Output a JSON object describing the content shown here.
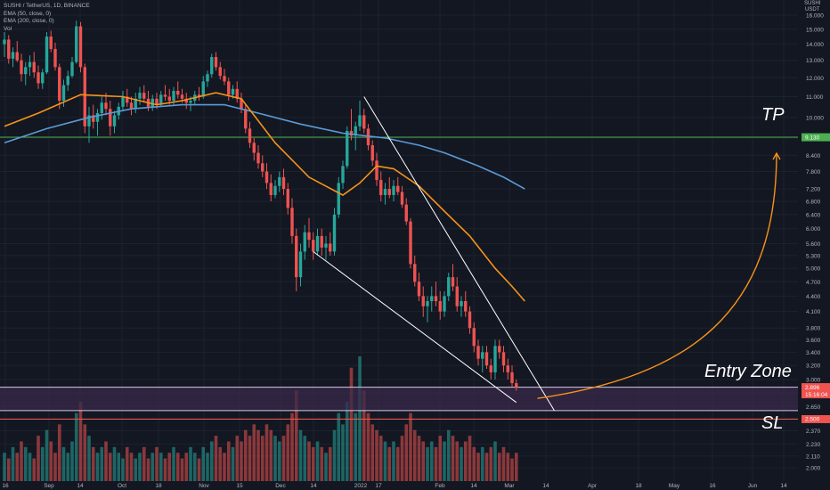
{
  "legend": {
    "symbol_line": "SUSHI / TetherUS, 1D, BINANCE",
    "ema50_line": "EMA (50, close, 0)",
    "ema200_line": "EMA (200, close, 0)",
    "vol_line": "Vol"
  },
  "axis_currency": {
    "line1": "SUSHI",
    "line2": "USDT"
  },
  "annotations": {
    "tp": "TP",
    "entry": "Entry Zone",
    "sl": "SL"
  },
  "colors": {
    "background": "#131722",
    "up": "#26a69a",
    "down": "#ef5350",
    "ema50": "#f7931a",
    "ema200": "#5b9bd5",
    "tp_line": "#4caf50",
    "entry_zone_fill": "#3a2a4a",
    "sl_line": "#ef5350",
    "trendline": "#ffffff",
    "projection": "#f7931a"
  },
  "chart_data": {
    "type": "candlestick",
    "price_axis": {
      "scale": "log",
      "ticks": [
        "2.000",
        "2.110",
        "2.230",
        "2.370",
        "2.510",
        "2.650",
        "2.820",
        "3.000",
        "3.200",
        "3.400",
        "3.600",
        "3.800",
        "4.100",
        "4.400",
        "4.700",
        "5.000",
        "5.300",
        "5.600",
        "6.000",
        "6.400",
        "6.800",
        "7.200",
        "7.800",
        "8.400",
        "9.100",
        "10.000",
        "11.000",
        "12.000",
        "13.000",
        "14.000",
        "15.000",
        "16.000"
      ]
    },
    "time_axis": {
      "ticks": [
        "16",
        "Sep",
        "14",
        "Oct",
        "18",
        "Nov",
        "15",
        "Dec",
        "14",
        "2022",
        "17",
        "Feb",
        "14",
        "Mar",
        "14",
        "Apr",
        "18",
        "May",
        "16",
        "Jun",
        "14"
      ]
    },
    "levels": {
      "take_profit": {
        "label": "9.130",
        "value": 9.13
      },
      "entry_zone": {
        "upper": 2.896,
        "lower": 2.6
      },
      "current": {
        "label": "2.896",
        "sublabel": "15:16:04",
        "value": 2.896
      },
      "stop_loss": {
        "label": "2.500",
        "value": 2.5
      }
    },
    "candles": [
      [
        14.0,
        14.8,
        13.2,
        14.3
      ],
      [
        14.3,
        14.6,
        12.8,
        13.1
      ],
      [
        13.1,
        13.8,
        12.6,
        13.5
      ],
      [
        13.5,
        14.2,
        12.9,
        13.0
      ],
      [
        13.0,
        13.4,
        11.8,
        12.2
      ],
      [
        12.2,
        12.9,
        11.6,
        12.6
      ],
      [
        12.6,
        13.3,
        12.1,
        12.9
      ],
      [
        12.9,
        13.5,
        12.0,
        12.3
      ],
      [
        12.3,
        12.7,
        11.4,
        11.7
      ],
      [
        11.7,
        12.5,
        11.4,
        12.3
      ],
      [
        12.3,
        14.8,
        12.2,
        14.5
      ],
      [
        14.5,
        14.9,
        13.5,
        13.7
      ],
      [
        13.7,
        14.1,
        12.4,
        12.6
      ],
      [
        12.6,
        12.8,
        10.4,
        10.8
      ],
      [
        10.8,
        11.9,
        10.5,
        11.6
      ],
      [
        11.6,
        12.4,
        11.3,
        12.1
      ],
      [
        12.1,
        13.2,
        12.0,
        12.9
      ],
      [
        12.9,
        15.6,
        12.8,
        15.2
      ],
      [
        15.2,
        15.5,
        12.3,
        12.6
      ],
      [
        12.6,
        12.8,
        9.3,
        9.6
      ],
      [
        9.6,
        10.5,
        8.9,
        10.1
      ],
      [
        10.1,
        10.6,
        9.5,
        9.8
      ],
      [
        9.8,
        10.4,
        9.2,
        10.2
      ],
      [
        10.2,
        11.0,
        9.9,
        10.7
      ],
      [
        10.7,
        11.2,
        10.1,
        10.4
      ],
      [
        10.4,
        10.8,
        9.2,
        9.6
      ],
      [
        9.6,
        10.3,
        9.3,
        10.1
      ],
      [
        10.1,
        10.7,
        9.9,
        10.5
      ],
      [
        10.5,
        11.3,
        10.3,
        11.0
      ],
      [
        11.0,
        11.4,
        10.5,
        10.7
      ],
      [
        10.7,
        11.0,
        10.1,
        10.4
      ],
      [
        10.4,
        11.2,
        10.2,
        10.9
      ],
      [
        10.9,
        11.5,
        10.6,
        11.2
      ],
      [
        11.2,
        11.6,
        10.7,
        10.9
      ],
      [
        10.9,
        11.3,
        10.3,
        10.5
      ],
      [
        10.5,
        11.1,
        10.3,
        10.9
      ],
      [
        10.9,
        11.2,
        10.4,
        10.6
      ],
      [
        10.6,
        11.3,
        10.5,
        11.1
      ],
      [
        11.1,
        11.6,
        10.8,
        11.0
      ],
      [
        11.0,
        11.4,
        10.6,
        10.8
      ],
      [
        10.8,
        11.5,
        10.6,
        11.3
      ],
      [
        11.3,
        11.8,
        10.9,
        11.1
      ],
      [
        11.1,
        11.4,
        10.7,
        10.9
      ],
      [
        10.9,
        11.2,
        10.4,
        10.7
      ],
      [
        10.7,
        11.0,
        10.3,
        10.8
      ],
      [
        10.8,
        11.3,
        10.6,
        11.1
      ],
      [
        11.1,
        11.5,
        10.8,
        11.0
      ],
      [
        11.0,
        12.1,
        10.9,
        11.8
      ],
      [
        11.8,
        12.4,
        11.5,
        12.2
      ],
      [
        12.2,
        13.4,
        12.0,
        13.2
      ],
      [
        13.2,
        13.5,
        12.4,
        12.6
      ],
      [
        12.6,
        12.9,
        11.9,
        12.1
      ],
      [
        12.1,
        12.5,
        11.6,
        11.8
      ],
      [
        11.8,
        12.0,
        10.8,
        11.1
      ],
      [
        11.1,
        11.6,
        10.9,
        11.4
      ],
      [
        11.4,
        11.8,
        10.7,
        10.9
      ],
      [
        10.9,
        11.2,
        10.2,
        10.4
      ],
      [
        10.4,
        10.6,
        9.3,
        9.5
      ],
      [
        9.5,
        9.8,
        8.7,
        8.9
      ],
      [
        8.9,
        9.1,
        8.2,
        8.5
      ],
      [
        8.5,
        8.8,
        7.9,
        8.1
      ],
      [
        8.1,
        8.4,
        7.6,
        7.8
      ],
      [
        7.8,
        8.1,
        7.2,
        7.4
      ],
      [
        7.4,
        7.7,
        6.8,
        7.0
      ],
      [
        7.0,
        7.5,
        6.9,
        7.3
      ],
      [
        7.3,
        7.8,
        7.1,
        7.6
      ],
      [
        7.6,
        7.9,
        7.0,
        7.2
      ],
      [
        7.2,
        7.4,
        6.4,
        6.6
      ],
      [
        6.6,
        6.9,
        5.6,
        5.8
      ],
      [
        5.8,
        6.0,
        4.5,
        4.8
      ],
      [
        4.8,
        5.6,
        4.6,
        5.4
      ],
      [
        5.4,
        6.1,
        5.2,
        5.9
      ],
      [
        5.9,
        6.3,
        5.5,
        5.7
      ],
      [
        5.7,
        5.9,
        5.2,
        5.4
      ],
      [
        5.4,
        6.0,
        5.3,
        5.8
      ],
      [
        5.8,
        6.0,
        5.3,
        5.5
      ],
      [
        5.5,
        5.8,
        5.2,
        5.6
      ],
      [
        5.6,
        5.9,
        5.3,
        5.4
      ],
      [
        5.4,
        6.6,
        5.3,
        6.4
      ],
      [
        6.4,
        7.6,
        6.3,
        7.4
      ],
      [
        7.4,
        8.2,
        7.2,
        8.0
      ],
      [
        8.0,
        9.6,
        7.9,
        9.4
      ],
      [
        9.4,
        10.4,
        9.0,
        9.2
      ],
      [
        9.2,
        9.8,
        8.6,
        9.6
      ],
      [
        9.6,
        10.8,
        9.4,
        10.1
      ],
      [
        10.1,
        10.4,
        9.3,
        9.5
      ],
      [
        9.5,
        9.7,
        8.6,
        8.8
      ],
      [
        8.8,
        9.0,
        8.0,
        8.2
      ],
      [
        8.2,
        8.5,
        7.3,
        7.5
      ],
      [
        7.5,
        7.8,
        6.8,
        7.0
      ],
      [
        7.0,
        7.4,
        6.7,
        7.2
      ],
      [
        7.2,
        7.6,
        6.9,
        7.0
      ],
      [
        7.0,
        7.5,
        6.8,
        7.3
      ],
      [
        7.3,
        7.6,
        7.0,
        7.1
      ],
      [
        7.1,
        7.3,
        6.6,
        6.7
      ],
      [
        6.7,
        6.9,
        6.1,
        6.2
      ],
      [
        6.2,
        6.3,
        5.0,
        5.1
      ],
      [
        5.1,
        5.3,
        4.6,
        4.7
      ],
      [
        4.7,
        4.9,
        4.3,
        4.4
      ],
      [
        4.4,
        4.6,
        4.0,
        4.2
      ],
      [
        4.2,
        4.4,
        3.9,
        4.3
      ],
      [
        4.3,
        4.6,
        4.1,
        4.4
      ],
      [
        4.4,
        4.7,
        4.2,
        4.3
      ],
      [
        4.3,
        4.5,
        3.95,
        4.1
      ],
      [
        4.1,
        4.5,
        4.0,
        4.4
      ],
      [
        4.4,
        4.9,
        4.3,
        4.8
      ],
      [
        4.8,
        5.1,
        4.5,
        4.6
      ],
      [
        4.6,
        4.8,
        4.1,
        4.2
      ],
      [
        4.2,
        4.4,
        4.0,
        4.3
      ],
      [
        4.3,
        4.5,
        4.0,
        4.1
      ],
      [
        4.1,
        4.2,
        3.7,
        3.8
      ],
      [
        3.8,
        3.9,
        3.4,
        3.5
      ],
      [
        3.5,
        3.6,
        3.2,
        3.3
      ],
      [
        3.3,
        3.5,
        3.1,
        3.4
      ],
      [
        3.4,
        3.5,
        3.15,
        3.2
      ],
      [
        3.2,
        3.3,
        3.0,
        3.1
      ],
      [
        3.1,
        3.6,
        3.0,
        3.5
      ],
      [
        3.5,
        3.6,
        3.3,
        3.4
      ],
      [
        3.4,
        3.5,
        3.1,
        3.2
      ],
      [
        3.2,
        3.3,
        3.0,
        3.1
      ],
      [
        3.1,
        3.2,
        2.9,
        2.95
      ],
      [
        2.95,
        3.0,
        2.85,
        2.896
      ]
    ],
    "ema50": [
      [
        0,
        9.6
      ],
      [
        8,
        10.2
      ],
      [
        18,
        11.1
      ],
      [
        28,
        11.0
      ],
      [
        36,
        10.6
      ],
      [
        42,
        10.8
      ],
      [
        50,
        11.2
      ],
      [
        56,
        10.9
      ],
      [
        64,
        8.9
      ],
      [
        72,
        7.6
      ],
      [
        80,
        7.0
      ],
      [
        84,
        7.4
      ],
      [
        88,
        8.0
      ],
      [
        92,
        7.9
      ],
      [
        98,
        7.3
      ],
      [
        104,
        6.5
      ],
      [
        110,
        5.8
      ],
      [
        116,
        5.0
      ],
      [
        120,
        4.6
      ],
      [
        123,
        4.3
      ]
    ],
    "ema200": [
      [
        0,
        8.9
      ],
      [
        10,
        9.5
      ],
      [
        20,
        10.0
      ],
      [
        30,
        10.4
      ],
      [
        42,
        10.6
      ],
      [
        52,
        10.6
      ],
      [
        60,
        10.2
      ],
      [
        70,
        9.7
      ],
      [
        80,
        9.3
      ],
      [
        90,
        9.1
      ],
      [
        98,
        8.8
      ],
      [
        104,
        8.5
      ],
      [
        112,
        8.0
      ],
      [
        118,
        7.6
      ],
      [
        123,
        7.2
      ]
    ],
    "volume": [
      5,
      4,
      6,
      5,
      7,
      6,
      5,
      4,
      8,
      6,
      9,
      7,
      5,
      10,
      6,
      5,
      7,
      12,
      14,
      10,
      8,
      6,
      5,
      6,
      7,
      5,
      6,
      5,
      4,
      6,
      5,
      4,
      5,
      6,
      4,
      5,
      6,
      5,
      4,
      5,
      6,
      5,
      4,
      5,
      6,
      5,
      4,
      6,
      5,
      7,
      8,
      6,
      5,
      7,
      6,
      8,
      7,
      9,
      8,
      10,
      9,
      8,
      10,
      9,
      8,
      7,
      8,
      10,
      12,
      16,
      9,
      8,
      7,
      6,
      7,
      6,
      5,
      6,
      9,
      12,
      10,
      14,
      20,
      12,
      22,
      16,
      12,
      10,
      9,
      8,
      7,
      6,
      7,
      6,
      8,
      10,
      12,
      9,
      8,
      7,
      6,
      7,
      6,
      8,
      7,
      9,
      8,
      7,
      6,
      7,
      8,
      6,
      5,
      6,
      5,
      6,
      7,
      5,
      6,
      5,
      4,
      5,
      4
    ],
    "trendlines": [
      {
        "from": [
          85,
          11.0
        ],
        "to": [
          130,
          2.6
        ]
      },
      {
        "from": [
          73,
          5.4
        ],
        "to": [
          121,
          2.7
        ]
      }
    ],
    "projection_curve": {
      "from": [
        126,
        2.75
      ],
      "to_target": 9.13
    }
  }
}
